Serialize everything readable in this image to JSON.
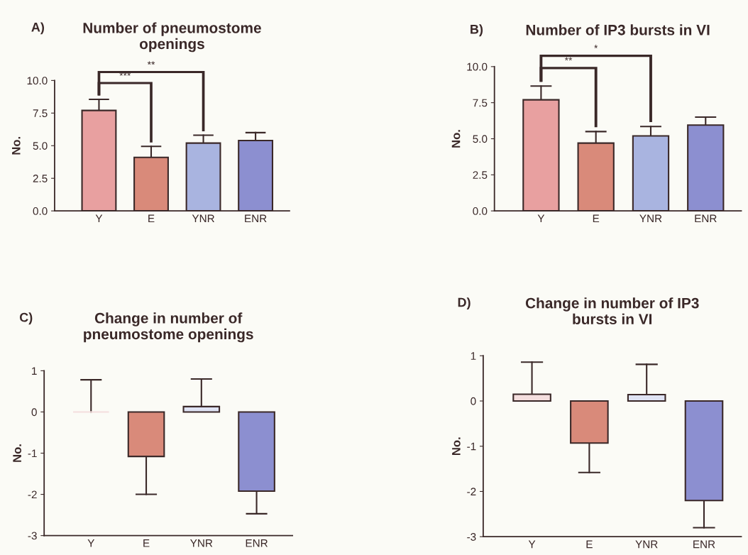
{
  "chart_data": [
    {
      "type": "bar",
      "title": "Number of pneumostome\nopenings",
      "ylabel": "No.",
      "categories": [
        "Y",
        "E",
        "YNR",
        "ENR"
      ],
      "values": [
        7.7,
        4.1,
        5.2,
        5.4
      ],
      "errors": [
        0.85,
        0.85,
        0.6,
        0.6
      ],
      "colors": [
        "#e8a0a0",
        "#d98a7a",
        "#a9b4e0",
        "#8c8fd0"
      ],
      "ylim": [
        0,
        10
      ],
      "yticks": [
        {
          "value": 0,
          "label": "0.0"
        },
        {
          "value": 2.5,
          "label": "2.5"
        },
        {
          "value": 5,
          "label": "5.0"
        },
        {
          "value": 7.5,
          "label": "7.5"
        },
        {
          "value": 10,
          "label": "10.0"
        }
      ],
      "annotations": [
        "A)",
        "***",
        "**"
      ]
    },
    {
      "type": "bar",
      "title": "Number of IP3 bursts in VI",
      "ylabel": "No.",
      "categories": [
        "Y",
        "E",
        "YNR",
        "ENR"
      ],
      "values": [
        7.7,
        4.7,
        5.2,
        5.95
      ],
      "errors": [
        0.95,
        0.8,
        0.65,
        0.55
      ],
      "colors": [
        "#e8a0a0",
        "#d98a7a",
        "#a9b4e0",
        "#8c8fd0"
      ],
      "ylim": [
        0,
        10
      ],
      "yticks": [
        {
          "value": 0,
          "label": "0.0"
        },
        {
          "value": 2.5,
          "label": "2.5"
        },
        {
          "value": 5,
          "label": "5.0"
        },
        {
          "value": 7.5,
          "label": "7.5"
        },
        {
          "value": 10,
          "label": "10.0"
        }
      ],
      "annotations": [
        "B)",
        "**",
        "*"
      ]
    },
    {
      "type": "bar",
      "title": "Change in number of\npneumostome openings",
      "ylabel": "No.",
      "categories": [
        "Y",
        "E",
        "YNR",
        "ENR"
      ],
      "values": [
        0,
        -1.08,
        0.13,
        -1.92
      ],
      "errors": [
        [
          0,
          0.78
        ],
        [
          -2.0,
          -1.08
        ],
        [
          0.13,
          0.8
        ],
        [
          -2.47,
          -1.92
        ]
      ],
      "colors": [
        "#f4dede",
        "#d98a7a",
        "#dfe3f4",
        "#8c8fd0"
      ],
      "ylim": [
        -3,
        1
      ],
      "yticks": [
        -3,
        -2,
        -1,
        0,
        1
      ],
      "annotations": [
        "C)"
      ]
    },
    {
      "type": "bar",
      "title": "Change in number of IP3\nbursts in VI",
      "ylabel": "No.",
      "categories": [
        "Y",
        "E",
        "YNR",
        "ENR"
      ],
      "values": [
        0.15,
        -0.93,
        0.14,
        -2.2
      ],
      "errors": [
        [
          0.15,
          0.86
        ],
        [
          -1.58,
          -0.93
        ],
        [
          0.14,
          0.81
        ],
        [
          -2.8,
          -2.2
        ]
      ],
      "colors": [
        "#f4dede",
        "#d98a7a",
        "#dfe3f4",
        "#8c8fd0"
      ],
      "ylim": [
        -3,
        1
      ],
      "yticks": [
        -3,
        -2,
        -1,
        0,
        1
      ],
      "annotations": [
        "D)"
      ]
    }
  ]
}
